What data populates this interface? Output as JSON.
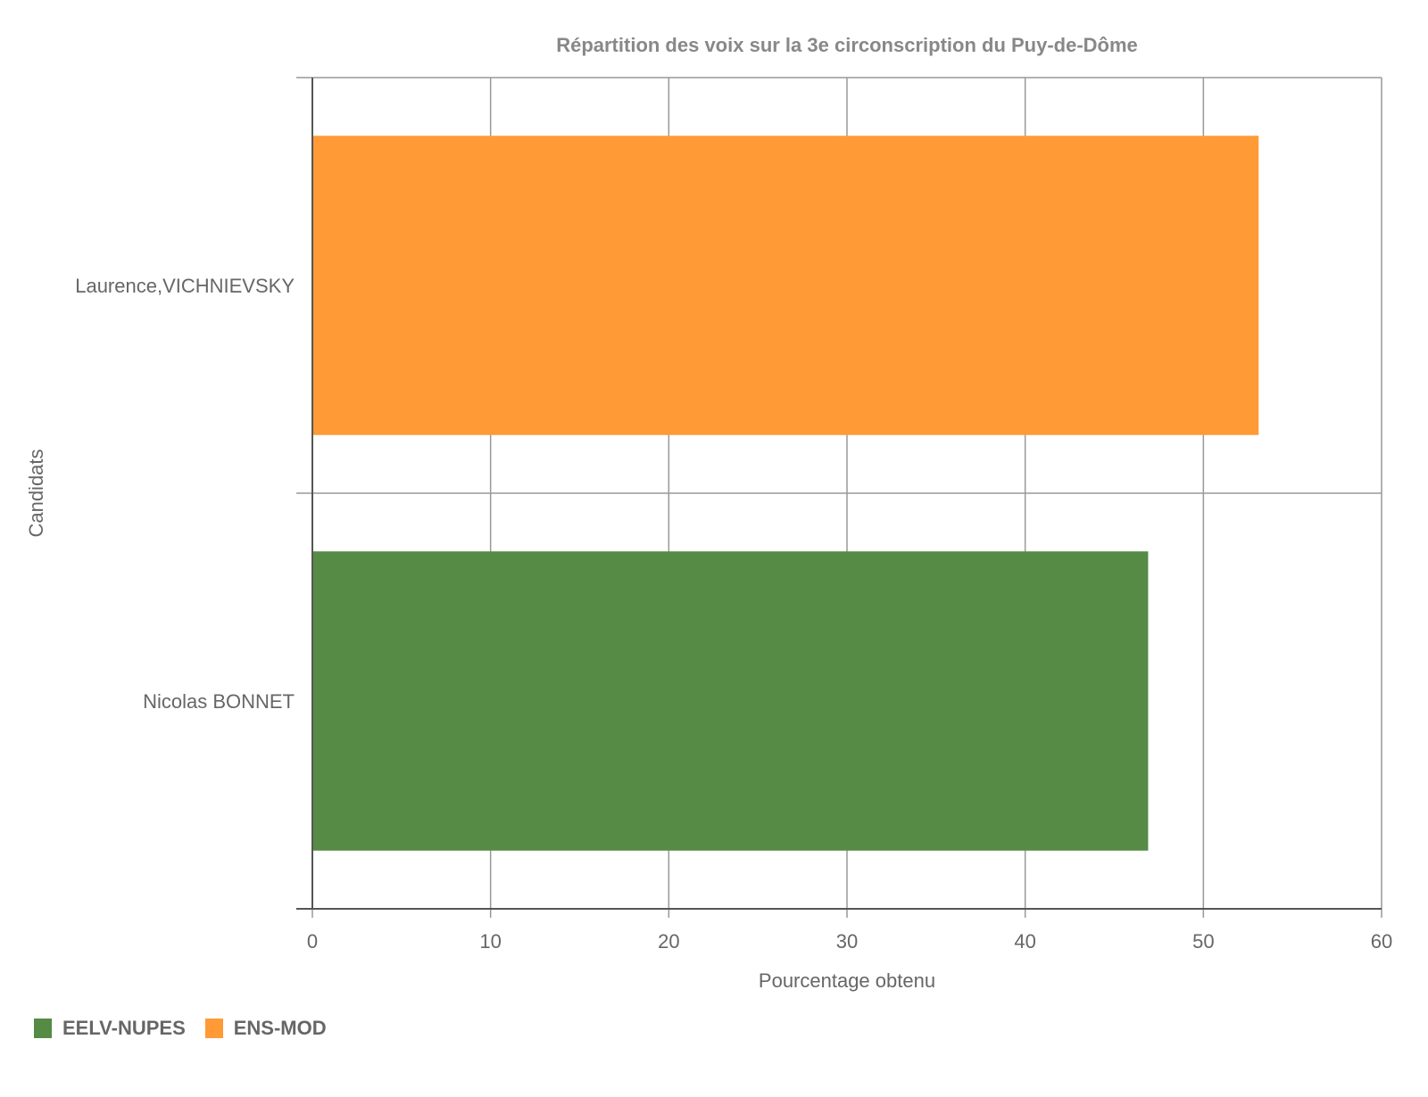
{
  "chart_data": {
    "type": "bar",
    "orientation": "horizontal",
    "title": "Répartition des voix sur la 3e circonscription du Puy-de-Dôme",
    "xlabel": "Pourcentage obtenu",
    "ylabel": "Candidats",
    "xlim": [
      0,
      60
    ],
    "x_ticks": [
      "0",
      "10",
      "20",
      "30",
      "40",
      "50",
      "60"
    ],
    "grid": true,
    "legend_position": "bottom-left",
    "categories": [
      "Laurence,VICHNIEVSKY",
      "Nicolas BONNET"
    ],
    "values": [
      53.1,
      46.9
    ],
    "bar_series": [
      "ENS-MOD",
      "EELV-NUPES"
    ],
    "series": [
      {
        "name": "EELV-NUPES",
        "color": "#558b45"
      },
      {
        "name": "ENS-MOD",
        "color": "#ff9a36"
      }
    ]
  }
}
